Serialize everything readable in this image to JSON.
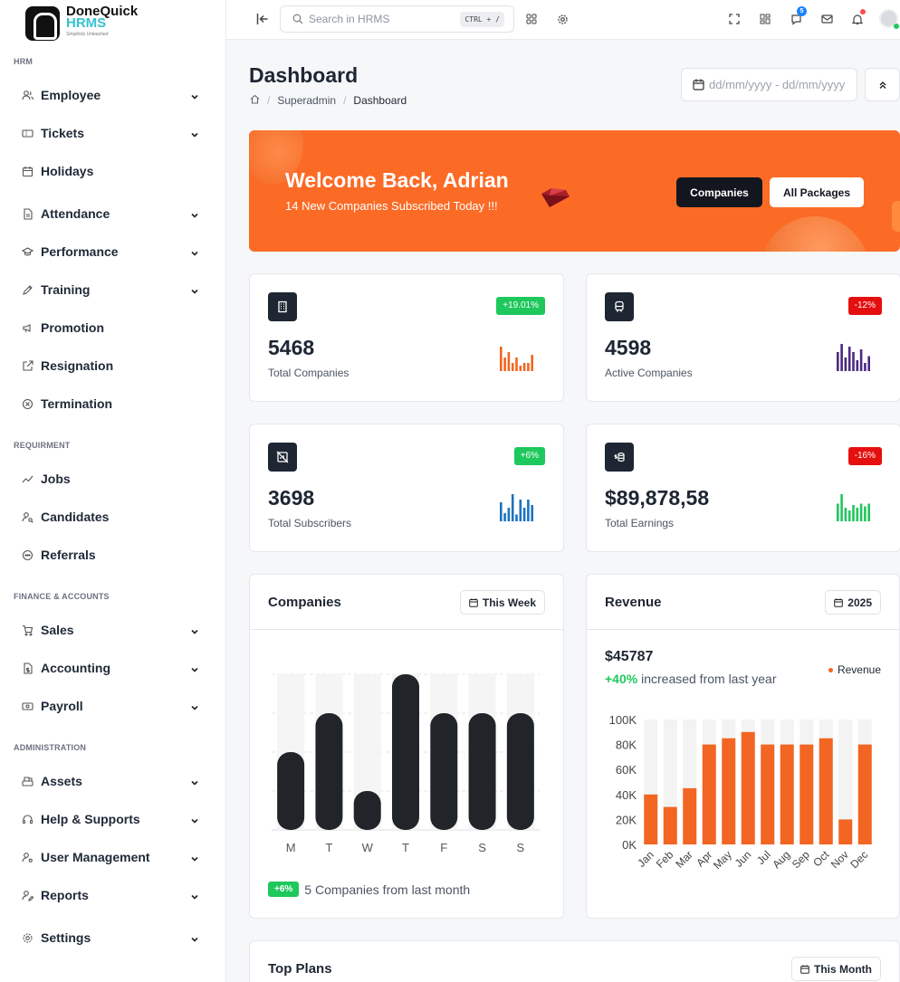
{
  "app": {
    "name_line1": "DoneQuick",
    "name_line2": "HRMS",
    "tagline": "Simplicity Unleashed"
  },
  "sidebar": {
    "sections": [
      {
        "title": "HRM",
        "items": [
          {
            "label": "Employee",
            "icon": "users-icon",
            "chevron": true
          },
          {
            "label": "Tickets",
            "icon": "ticket-icon",
            "chevron": true
          },
          {
            "label": "Holidays",
            "icon": "calendar-icon",
            "chevron": false
          },
          {
            "label": "Attendance",
            "icon": "file-icon",
            "chevron": true
          },
          {
            "label": "Performance",
            "icon": "graduation-icon",
            "chevron": true
          },
          {
            "label": "Training",
            "icon": "edit-icon",
            "chevron": true
          },
          {
            "label": "Promotion",
            "icon": "speakerphone-icon",
            "chevron": false
          },
          {
            "label": "Resignation",
            "icon": "external-link-icon",
            "chevron": false
          },
          {
            "label": "Termination",
            "icon": "circle-x-icon",
            "chevron": false
          }
        ]
      },
      {
        "title": "REQUIRMENT",
        "items": [
          {
            "label": "Jobs",
            "icon": "trend-icon",
            "chevron": false
          },
          {
            "label": "Candidates",
            "icon": "user-search-icon",
            "chevron": false
          },
          {
            "label": "Referrals",
            "icon": "referral-icon",
            "chevron": false
          }
        ]
      },
      {
        "title": "FINANCE & ACCOUNTS",
        "items": [
          {
            "label": "Sales",
            "icon": "cart-icon",
            "chevron": true
          },
          {
            "label": "Accounting",
            "icon": "file-dollar-icon",
            "chevron": true
          },
          {
            "label": "Payroll",
            "icon": "cash-icon",
            "chevron": true
          }
        ]
      },
      {
        "title": "ADMINISTRATION",
        "items": [
          {
            "label": "Assets",
            "icon": "cash-register-icon",
            "chevron": true
          },
          {
            "label": "Help & Supports",
            "icon": "headset-icon",
            "chevron": true
          },
          {
            "label": "User Management",
            "icon": "user-cog-icon",
            "chevron": true
          },
          {
            "label": "Reports",
            "icon": "user-edit-icon",
            "chevron": true
          },
          {
            "label": "Settings",
            "icon": "settings-icon",
            "chevron": true
          }
        ]
      }
    ]
  },
  "topbar": {
    "search_placeholder": "Search in HRMS",
    "shortcut": "CTRL + /",
    "chat_badge": "5"
  },
  "page": {
    "title": "Dashboard",
    "breadcrumb": [
      "Superadmin",
      "Dashboard"
    ],
    "date_placeholder": "dd/mm/yyyy - dd/mm/yyyy"
  },
  "banner": {
    "greeting": "Welcome Back, Adrian",
    "subtitle": "14 New Companies Subscribed Today !!!",
    "btn_primary": "Companies",
    "btn_secondary": "All Packages"
  },
  "stats": [
    {
      "value": "5468",
      "label": "Total Companies",
      "change": "+19.01%",
      "trend": "up",
      "icon": "building-icon",
      "spark_color": "#f26522",
      "spark": [
        0.9,
        0.5,
        0.7,
        0.3,
        0.5,
        0.2,
        0.3,
        0.3,
        0.6
      ]
    },
    {
      "value": "4598",
      "label": "Active Companies",
      "change": "-12%",
      "trend": "down",
      "icon": "train-icon",
      "spark_color": "#4b2a7f",
      "spark": [
        0.7,
        1.0,
        0.5,
        0.9,
        0.7,
        0.4,
        0.8,
        0.3,
        0.55
      ]
    },
    {
      "value": "3698",
      "label": "Total Subscribers",
      "change": "+6%",
      "trend": "up",
      "icon": "chart-off-icon",
      "spark_color": "#1b72c1",
      "spark": [
        0.7,
        0.3,
        0.5,
        1.0,
        0.25,
        0.8,
        0.5,
        0.8,
        0.6
      ]
    },
    {
      "value": "$89,878,58",
      "label": "Total Earnings",
      "change": "-16%",
      "trend": "down",
      "icon": "coin-icon",
      "spark_color": "#22c55e",
      "spark": [
        0.65,
        1.0,
        0.5,
        0.4,
        0.6,
        0.5,
        0.65,
        0.55,
        0.65
      ]
    }
  ],
  "companies_chart": {
    "title": "Companies",
    "filter": "This Week",
    "footer_badge": "+6%",
    "footer_text": "5 Companies from last month",
    "chart_data": {
      "type": "bar",
      "categories": [
        "M",
        "T",
        "W",
        "T",
        "F",
        "S",
        "S"
      ],
      "values": [
        40,
        60,
        20,
        80,
        60,
        60,
        60
      ],
      "ylim": [
        0,
        80
      ]
    }
  },
  "revenue_chart": {
    "title": "Revenue",
    "filter": "2025",
    "amount": "$45787",
    "growth": "+40%",
    "growth_text": "increased from last year",
    "legend": "Revenue",
    "chart_data": {
      "type": "bar",
      "categories": [
        "Jan",
        "Feb",
        "Mar",
        "Apr",
        "May",
        "Jun",
        "Jul",
        "Aug",
        "Sep",
        "Oct",
        "Nov",
        "Dec"
      ],
      "series": [
        {
          "name": "Revenue",
          "values": [
            40000,
            30000,
            45000,
            80000,
            85000,
            90000,
            80000,
            80000,
            80000,
            85000,
            20000,
            80000
          ]
        }
      ],
      "yticks": [
        "0K",
        "20K",
        "40K",
        "60K",
        "80K",
        "100K"
      ],
      "ylim": [
        0,
        100000
      ]
    }
  },
  "top_plans": {
    "title": "Top Plans",
    "filter": "This Month"
  },
  "colors": {
    "accent": "#fb6b26",
    "dark": "#1e2633",
    "success": "#1ec85c",
    "danger": "#e60f0f"
  }
}
